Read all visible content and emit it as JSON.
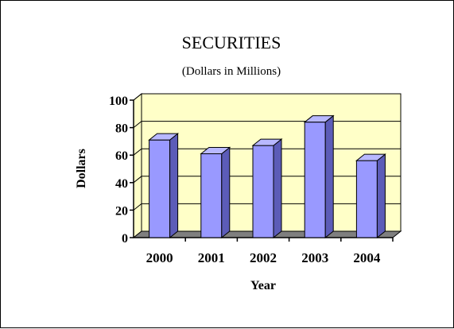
{
  "chart_data": {
    "type": "bar",
    "title": "SECURITIES",
    "subtitle": "(Dollars in Millions)",
    "xlabel": "Year",
    "ylabel": "Dollars",
    "categories": [
      "2000",
      "2001",
      "2002",
      "2003",
      "2004"
    ],
    "values": [
      71,
      61,
      67,
      84,
      56
    ],
    "ylim": [
      0,
      100
    ],
    "yticks": [
      "0",
      "20",
      "40",
      "60",
      "80",
      "100"
    ],
    "grid": true,
    "legend": "none",
    "style": "3d"
  },
  "colors": {
    "plot_background": "#ffffc8",
    "bar_front": "#9999ff",
    "bar_side": "#5c5cb8",
    "bar_top": "#b8b8ff",
    "floor": "#7f7f7f",
    "grid": "#000000"
  }
}
